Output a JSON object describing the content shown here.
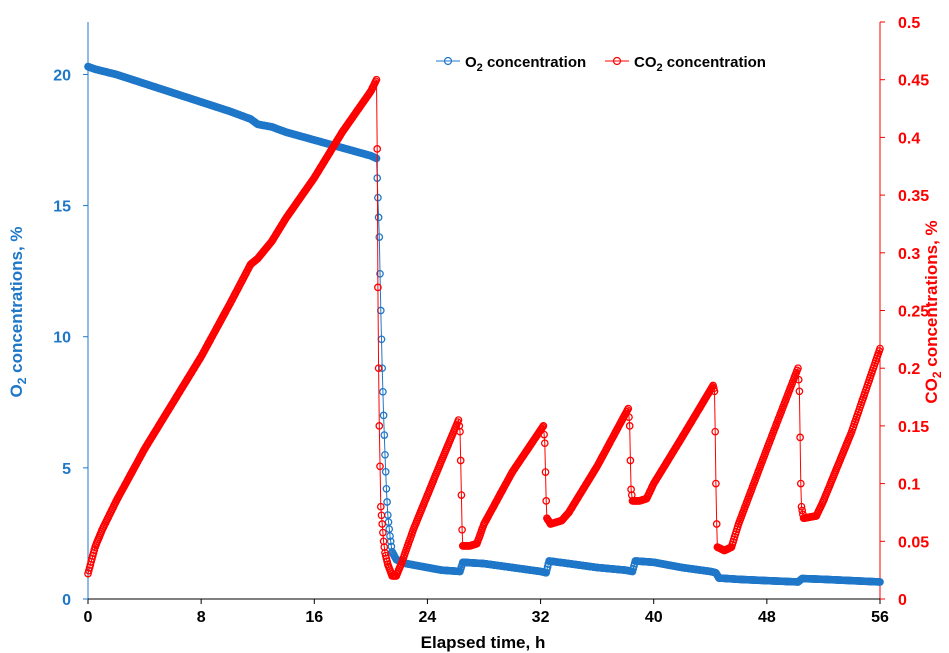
{
  "chart_data": {
    "type": "scatter",
    "x_axis": {
      "label": "Elapsed time, h",
      "range": [
        0,
        56
      ],
      "ticks": [
        "0",
        "8",
        "16",
        "24",
        "32",
        "40",
        "48",
        "56"
      ]
    },
    "y_left": {
      "label_prefix": "O",
      "label_sub": "2",
      "label_suffix": " concentrations, %",
      "range": [
        0,
        22
      ],
      "ticks": [
        "0",
        "5",
        "10",
        "15",
        "20"
      ],
      "color": "#1f77c8"
    },
    "y_right": {
      "label_prefix": "CO",
      "label_sub": "2",
      "label_suffix": " concentrations, %",
      "range": [
        0,
        0.5
      ],
      "ticks": [
        "0",
        "0.05",
        "0.1",
        "0.15",
        "0.2",
        "0.25",
        "0.3",
        "0.35",
        "0.4",
        "0.45",
        "0.5"
      ],
      "color": "#ff0000"
    },
    "legend_position": "top-right",
    "series": [
      {
        "name_prefix": "O",
        "name_sub": "2",
        "name_suffix": " concentration",
        "axis": "left",
        "color": "#1f77c8",
        "points": [
          [
            0,
            20.3
          ],
          [
            0.5,
            20.2
          ],
          [
            2,
            20.0
          ],
          [
            4,
            19.65
          ],
          [
            6,
            19.3
          ],
          [
            8,
            18.95
          ],
          [
            10,
            18.6
          ],
          [
            11.5,
            18.3
          ],
          [
            12,
            18.1
          ],
          [
            13,
            18.0
          ],
          [
            14,
            17.8
          ],
          [
            16,
            17.5
          ],
          [
            18,
            17.2
          ],
          [
            20,
            16.9
          ],
          [
            20.4,
            16.8
          ],
          [
            20.6,
            13.8
          ],
          [
            20.7,
            11.0
          ],
          [
            20.8,
            8.8
          ],
          [
            20.9,
            7.0
          ],
          [
            21.0,
            5.5
          ],
          [
            21.1,
            4.2
          ],
          [
            21.2,
            3.2
          ],
          [
            21.35,
            2.4
          ],
          [
            21.5,
            1.8
          ],
          [
            21.8,
            1.5
          ],
          [
            22.5,
            1.35
          ],
          [
            24,
            1.2
          ],
          [
            25,
            1.1
          ],
          [
            26.3,
            1.05
          ],
          [
            26.5,
            1.4
          ],
          [
            28,
            1.35
          ],
          [
            30,
            1.2
          ],
          [
            32,
            1.05
          ],
          [
            32.4,
            1.0
          ],
          [
            32.6,
            1.45
          ],
          [
            34,
            1.35
          ],
          [
            36,
            1.2
          ],
          [
            38,
            1.1
          ],
          [
            38.5,
            1.05
          ],
          [
            38.7,
            1.45
          ],
          [
            40,
            1.4
          ],
          [
            42,
            1.2
          ],
          [
            44,
            1.05
          ],
          [
            44.4,
            1.0
          ],
          [
            44.6,
            0.8
          ],
          [
            46,
            0.75
          ],
          [
            48,
            0.7
          ],
          [
            50.2,
            0.65
          ],
          [
            50.5,
            0.78
          ],
          [
            52,
            0.75
          ],
          [
            54,
            0.7
          ],
          [
            56,
            0.65
          ]
        ]
      },
      {
        "name_prefix": "CO",
        "name_sub": "2",
        "name_suffix": " concentration",
        "axis": "right",
        "color": "#ff0000",
        "points": [
          [
            0,
            0.022
          ],
          [
            0.5,
            0.045
          ],
          [
            1,
            0.06
          ],
          [
            2,
            0.085
          ],
          [
            4,
            0.13
          ],
          [
            6,
            0.17
          ],
          [
            8,
            0.21
          ],
          [
            10,
            0.255
          ],
          [
            11.5,
            0.29
          ],
          [
            12,
            0.295
          ],
          [
            13,
            0.31
          ],
          [
            14,
            0.33
          ],
          [
            16,
            0.365
          ],
          [
            18,
            0.405
          ],
          [
            20,
            0.44
          ],
          [
            20.4,
            0.45
          ],
          [
            20.45,
            0.39
          ],
          [
            20.5,
            0.27
          ],
          [
            20.55,
            0.2
          ],
          [
            20.6,
            0.15
          ],
          [
            20.7,
            0.08
          ],
          [
            20.8,
            0.065
          ],
          [
            20.9,
            0.05
          ],
          [
            21.0,
            0.04
          ],
          [
            21.2,
            0.03
          ],
          [
            21.5,
            0.02
          ],
          [
            21.8,
            0.02
          ],
          [
            22.2,
            0.032
          ],
          [
            23,
            0.06
          ],
          [
            24,
            0.09
          ],
          [
            25,
            0.12
          ],
          [
            26.2,
            0.155
          ],
          [
            26.3,
            0.145
          ],
          [
            26.35,
            0.12
          ],
          [
            26.4,
            0.09
          ],
          [
            26.45,
            0.06
          ],
          [
            26.5,
            0.046
          ],
          [
            27,
            0.046
          ],
          [
            27.5,
            0.048
          ],
          [
            28,
            0.065
          ],
          [
            30,
            0.11
          ],
          [
            32.2,
            0.15
          ],
          [
            32.3,
            0.135
          ],
          [
            32.35,
            0.11
          ],
          [
            32.4,
            0.085
          ],
          [
            32.45,
            0.07
          ],
          [
            32.7,
            0.065
          ],
          [
            33.5,
            0.068
          ],
          [
            34,
            0.075
          ],
          [
            36,
            0.115
          ],
          [
            38.2,
            0.165
          ],
          [
            38.3,
            0.15
          ],
          [
            38.35,
            0.12
          ],
          [
            38.4,
            0.095
          ],
          [
            38.5,
            0.085
          ],
          [
            39,
            0.085
          ],
          [
            39.5,
            0.087
          ],
          [
            40,
            0.1
          ],
          [
            42,
            0.14
          ],
          [
            44.2,
            0.185
          ],
          [
            44.3,
            0.18
          ],
          [
            44.35,
            0.145
          ],
          [
            44.4,
            0.1
          ],
          [
            44.45,
            0.065
          ],
          [
            44.5,
            0.045
          ],
          [
            45,
            0.042
          ],
          [
            45.5,
            0.045
          ],
          [
            46,
            0.065
          ],
          [
            48,
            0.13
          ],
          [
            50.2,
            0.2
          ],
          [
            50.3,
            0.18
          ],
          [
            50.35,
            0.14
          ],
          [
            50.4,
            0.1
          ],
          [
            50.45,
            0.08
          ],
          [
            50.6,
            0.07
          ],
          [
            51.5,
            0.072
          ],
          [
            52,
            0.085
          ],
          [
            54,
            0.145
          ],
          [
            56,
            0.217
          ]
        ]
      }
    ]
  }
}
